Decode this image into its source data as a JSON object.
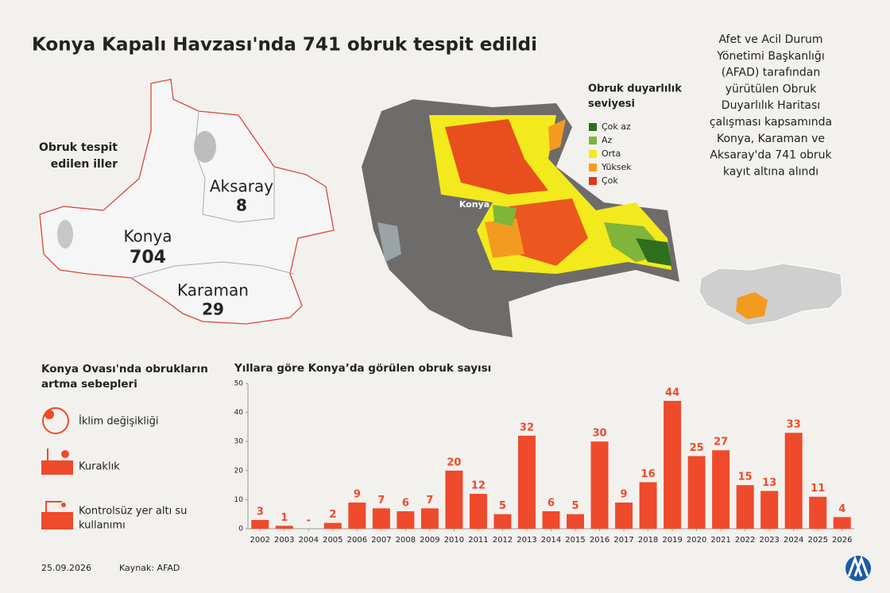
{
  "header": {
    "title": "Konya Kapalı Havzası'nda 741 obruk tespit edildi"
  },
  "map": {
    "heading": [
      "Obruk tespit",
      "edilen iller"
    ],
    "provinces": [
      {
        "name": "Aksaray",
        "count": 8
      },
      {
        "name": "Konya",
        "count": 704
      },
      {
        "name": "Karaman",
        "count": 29
      }
    ]
  },
  "heatmap": {
    "city_label": "Konya",
    "legend_title": [
      "Obruk duyarlılık",
      "seviyesi"
    ],
    "legend": [
      {
        "label": "Çok az",
        "color": "#2e6e1f"
      },
      {
        "label": "Az",
        "color": "#7fb53a"
      },
      {
        "label": "Orta",
        "color": "#f2ea1c"
      },
      {
        "label": "Yüksek",
        "color": "#f39b1f"
      },
      {
        "label": "Çok",
        "color": "#e8321f"
      }
    ]
  },
  "note": {
    "lines": [
      "Afet ve Acil Durum",
      "Yönetimi Başkanlığı",
      "(AFAD) tarafından",
      "yürütülen Obruk",
      "Duyarlılık Haritası",
      "çalışması kapsamında",
      "Konya, Karaman ve",
      "Aksaray'da 741 obruk",
      "kayıt altına alındı"
    ]
  },
  "causes": {
    "heading": [
      "Konya Ovası'nda obrukların",
      "artma sebepleri"
    ],
    "items": [
      [
        "İklim değişikliği"
      ],
      [
        "Kuraklık"
      ],
      [
        "Kontrolsüz yer altı su",
        "kullanımı"
      ]
    ]
  },
  "footer": {
    "date": "25.09.2026",
    "source": "Kaynak: AFAD"
  },
  "chart_data": {
    "type": "bar",
    "title": "Yıllara göre Konya’da görülen obruk sayısı",
    "categories": [
      "2002",
      "2003",
      "2004",
      "2005",
      "2006",
      "2007",
      "2008",
      "2009",
      "2010",
      "2011",
      "2012",
      "2013",
      "2014",
      "2015",
      "2016",
      "2017",
      "2018",
      "2019",
      "2020",
      "2021",
      "2022",
      "2023",
      "2024",
      "2025",
      "2026"
    ],
    "values": [
      3,
      1,
      0,
      2,
      9,
      7,
      6,
      7,
      20,
      12,
      5,
      32,
      6,
      5,
      30,
      9,
      16,
      44,
      25,
      27,
      15,
      13,
      33,
      11,
      4
    ],
    "value_labels": [
      "3",
      "1",
      "-",
      "2",
      "9",
      "7",
      "6",
      "7",
      "20",
      "12",
      "5",
      "32",
      "6",
      "5",
      "30",
      "9",
      "16",
      "44",
      "25",
      "27",
      "15",
      "13",
      "33",
      "11",
      "4"
    ],
    "color": "#ee4a2b",
    "ylim": [
      0,
      50
    ],
    "yticks": [
      0,
      10,
      20,
      30,
      40,
      50
    ],
    "grid": false
  }
}
